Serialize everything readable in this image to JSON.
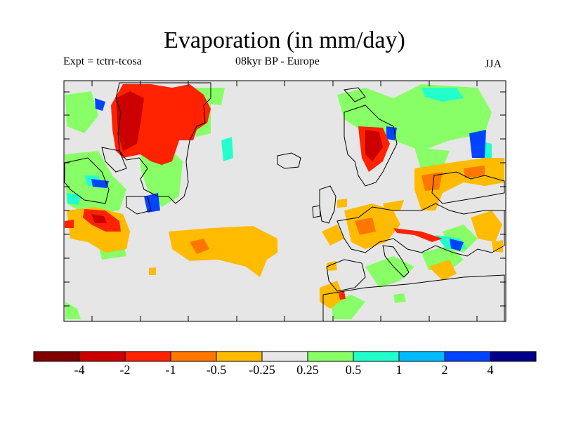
{
  "title": "Evaporation (in mm/day)",
  "subtitle_left": "Expt = tctrr-tcosa",
  "subtitle_center": "08kyr BP - Europe",
  "subtitle_right": "JJA",
  "colorbar": {
    "colors": [
      "#800000",
      "#cc0000",
      "#ff2200",
      "#ff7700",
      "#ffbb00",
      "#e8e8e8",
      "#88ff66",
      "#22ffcc",
      "#00bbff",
      "#0044ff",
      "#000088"
    ],
    "labels": [
      "-4",
      "-2",
      "-1",
      "-0.5",
      "-0.25",
      "0.25",
      "0.5",
      "1",
      "2",
      "4"
    ]
  },
  "colors": {
    "background": "#e6e6e6",
    "coast": "#000000"
  }
}
